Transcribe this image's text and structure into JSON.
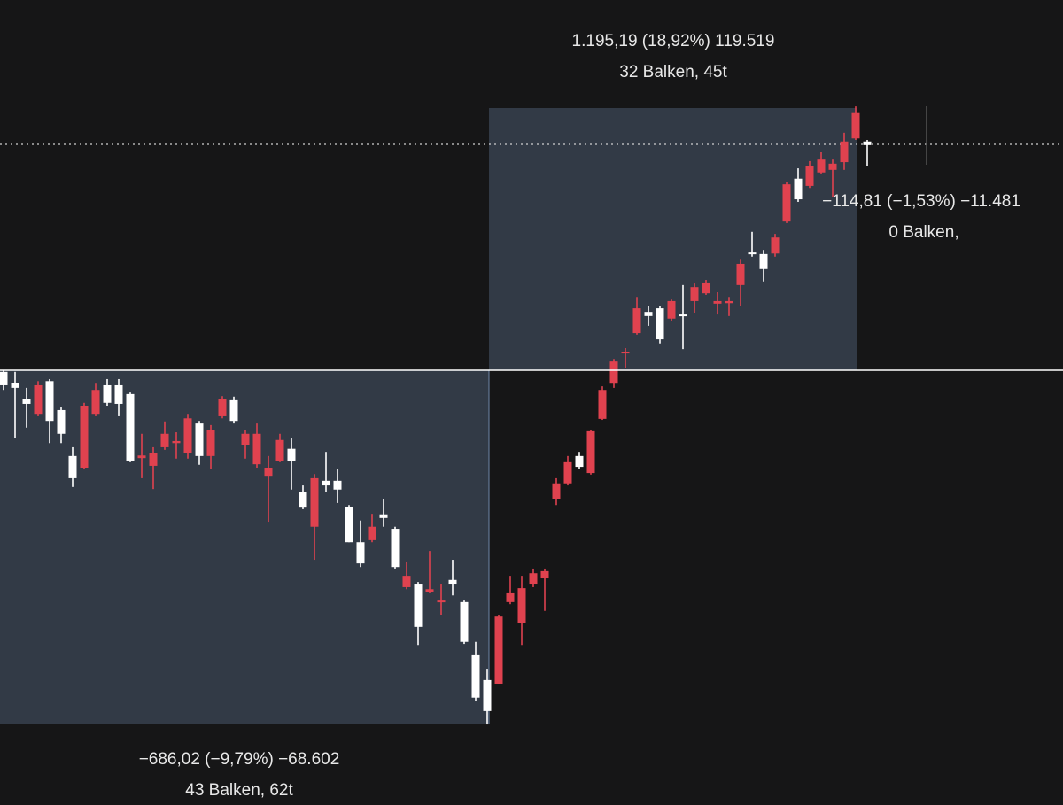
{
  "chart_data": {
    "type": "candlestick",
    "ylim": [
      6165,
      7724
    ],
    "up_color": "#e0424f",
    "down_color": "#ffffff",
    "open": [
      7004,
      6983,
      6952,
      6921,
      6986,
      6930,
      6841,
      6818,
      6921,
      6978,
      6978,
      6961,
      6837,
      6822,
      6858,
      6866,
      6846,
      6904,
      6841,
      6918,
      6949,
      6863,
      6825,
      6801,
      6832,
      6855,
      6772,
      6704,
      6793,
      6793,
      6743,
      6674,
      6678,
      6728,
      6700,
      6587,
      6592,
      6578,
      6558,
      6601,
      6558,
      6455,
      6407,
      6400,
      6558,
      6517,
      6592,
      6604,
      6757,
      6788,
      6841,
      6808,
      6913,
      6981,
      7040,
      7079,
      7120,
      7127,
      7107,
      7115,
      7141,
      7156,
      7136,
      7137,
      7172,
      7235,
      7232,
      7233,
      7295,
      7378,
      7364,
      7390,
      7395,
      7410,
      7456,
      7450
    ],
    "high": [
      7007,
      7004,
      6973,
      6986,
      6990,
      6935,
      6858,
      6944,
      6981,
      6990,
      6990,
      6964,
      6884,
      6858,
      6908,
      6887,
      6921,
      6909,
      6901,
      6957,
      6956,
      6892,
      6904,
      6841,
      6884,
      6875,
      6784,
      6806,
      6849,
      6815,
      6746,
      6716,
      6729,
      6758,
      6704,
      6635,
      6597,
      6657,
      6592,
      6640,
      6561,
      6481,
      6429,
      6532,
      6609,
      6609,
      6623,
      6623,
      6798,
      6841,
      6849,
      6892,
      6976,
      7029,
      7050,
      7149,
      7132,
      7132,
      7144,
      7172,
      7175,
      7182,
      7158,
      7149,
      7221,
      7275,
      7240,
      7271,
      7372,
      7398,
      7412,
      7429,
      7415,
      7467,
      7518,
      7453
    ],
    "low": [
      6969,
      6875,
      6896,
      6918,
      6866,
      6866,
      6781,
      6815,
      6918,
      6938,
      6918,
      6829,
      6798,
      6777,
      6853,
      6836,
      6836,
      6824,
      6815,
      6914,
      6904,
      6836,
      6818,
      6712,
      6829,
      6776,
      6738,
      6640,
      6772,
      6750,
      6674,
      6626,
      6674,
      6704,
      6623,
      6583,
      6475,
      6575,
      6532,
      6571,
      6477,
      6366,
      6321,
      6400,
      6554,
      6475,
      6587,
      6541,
      6746,
      6784,
      6815,
      6805,
      6911,
      6973,
      7012,
      7076,
      7093,
      7059,
      7103,
      7048,
      7117,
      7153,
      7115,
      7112,
      7131,
      7227,
      7179,
      7227,
      7292,
      7333,
      7360,
      7388,
      7343,
      7395,
      7453,
      7402
    ],
    "close": [
      6978,
      6973,
      6942,
      6978,
      6909,
      6884,
      6798,
      6938,
      6969,
      6944,
      6942,
      6832,
      6842,
      6846,
      6884,
      6870,
      6914,
      6841,
      6892,
      6952,
      6909,
      6884,
      6884,
      6818,
      6872,
      6832,
      6741,
      6798,
      6784,
      6776,
      6674,
      6633,
      6704,
      6721,
      6626,
      6609,
      6510,
      6583,
      6561,
      6592,
      6481,
      6373,
      6347,
      6530,
      6575,
      6585,
      6614,
      6618,
      6788,
      6829,
      6820,
      6889,
      6969,
      7024,
      7043,
      7127,
      7112,
      7067,
      7141,
      7112,
      7168,
      7177,
      7141,
      7141,
      7213,
      7232,
      7203,
      7264,
      7367,
      7338,
      7402,
      7415,
      7407,
      7450,
      7505,
      7443
    ],
    "annotations": [
      "1.195,19 (18,92%) 119.519",
      "32 Balken, 45t",
      "−114,81 (−1,53%) −11.481",
      "0 Balken,",
      "−686,02 (−9,79%) −68.602",
      "43 Balken, 62t"
    ]
  }
}
